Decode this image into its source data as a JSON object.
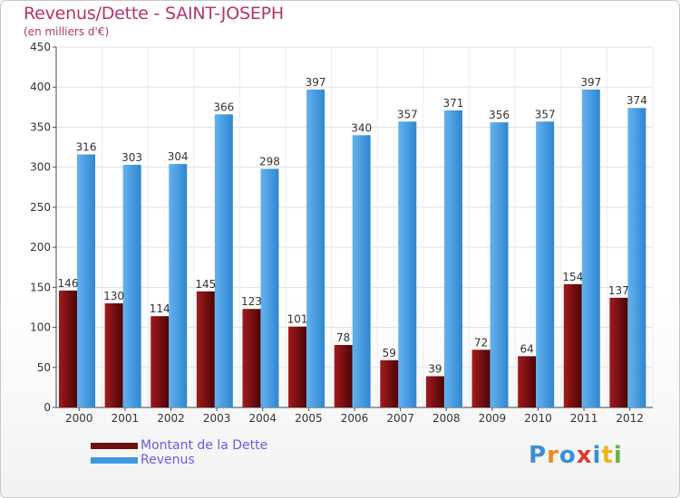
{
  "header": {
    "title": "Revenus/Dette - SAINT-JOSEPH",
    "subtitle": "(en milliers d'€)"
  },
  "logo": {
    "text": "Proxiti",
    "letter_colors": [
      "#3a8fd6",
      "#f08a1c",
      "#3a8fd6",
      "#e23b2f",
      "#3a8fd6",
      "#f3b21a",
      "#6ab04c"
    ]
  },
  "chart_data": {
    "type": "bar",
    "categories": [
      "2000",
      "2001",
      "2002",
      "2003",
      "2004",
      "2005",
      "2006",
      "2007",
      "2008",
      "2009",
      "2010",
      "2011",
      "2012"
    ],
    "series": [
      {
        "name": "Montant de la Dette",
        "color": "#6b0f10",
        "values": [
          146,
          130,
          114,
          145,
          123,
          101,
          78,
          59,
          39,
          72,
          64,
          154,
          137
        ]
      },
      {
        "name": "Revenus",
        "color": "#3f97dd",
        "values": [
          316,
          303,
          304,
          366,
          298,
          397,
          340,
          357,
          371,
          356,
          357,
          397,
          374
        ]
      }
    ],
    "title": "Revenus/Dette - SAINT-JOSEPH",
    "ylabel": "(en milliers d'€)",
    "ylim": [
      0,
      450
    ],
    "yticks": [
      0,
      50,
      100,
      150,
      200,
      250,
      300,
      350,
      400,
      450
    ],
    "grid": true,
    "legend_position": "bottom-left"
  }
}
